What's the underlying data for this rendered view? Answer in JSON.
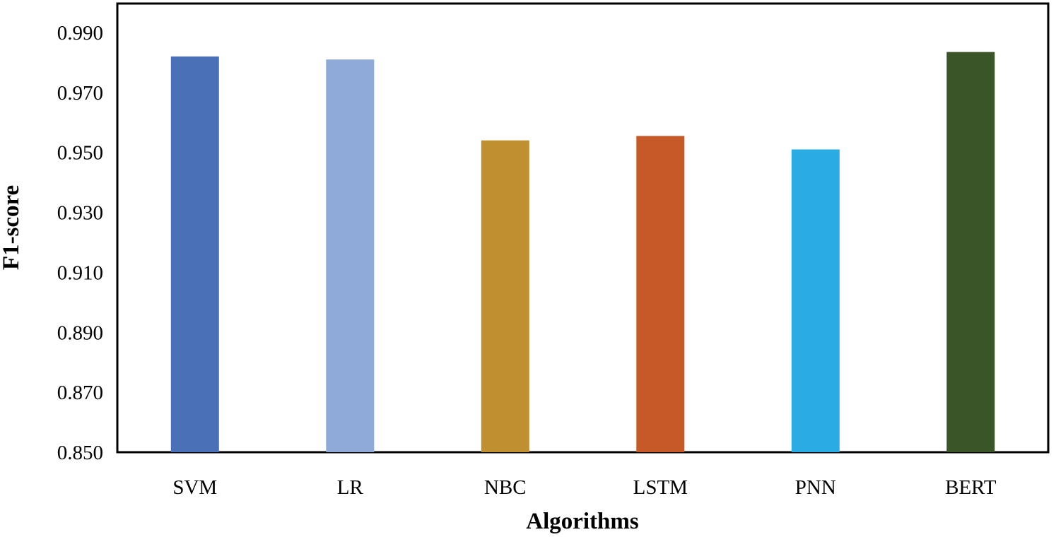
{
  "chart_data": {
    "type": "bar",
    "title": "",
    "xlabel": "Algorithms",
    "ylabel": "F1-score",
    "categories": [
      "SVM",
      "LR",
      "NBC",
      "LSTM",
      "PNN",
      "BERT"
    ],
    "values": [
      0.982,
      0.981,
      0.954,
      0.9555,
      0.951,
      0.9835
    ],
    "colors": [
      "#4a70b8",
      "#8faad9",
      "#bf8f30",
      "#c55a28",
      "#2aace3",
      "#3a5628"
    ],
    "ylim": [
      0.85,
      1.0
    ],
    "yticks": [
      0.85,
      0.87,
      0.89,
      0.91,
      0.93,
      0.95,
      0.97,
      0.99
    ],
    "ytick_labels": [
      "0.850",
      "0.870",
      "0.890",
      "0.910",
      "0.930",
      "0.950",
      "0.970",
      "0.990"
    ],
    "grid": false,
    "legend": "none"
  }
}
